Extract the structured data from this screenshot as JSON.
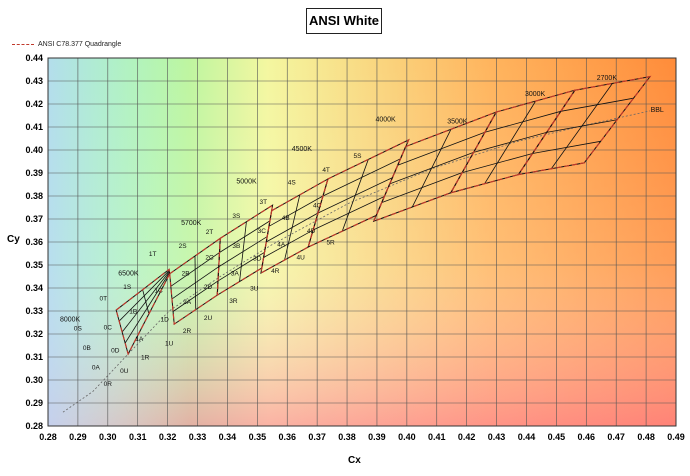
{
  "chart_data": {
    "type": "line",
    "title": "ANSI White",
    "xlabel": "Cx",
    "ylabel": "Cy",
    "xlim": [
      0.28,
      0.49
    ],
    "ylim": [
      0.28,
      0.44
    ],
    "grid": true,
    "legend": {
      "position": "top-left",
      "entries": [
        "ANSI C78.377 Quadrangle"
      ]
    },
    "x_ticks": [
      "0.28",
      "0.29",
      "0.30",
      "0.31",
      "0.32",
      "0.33",
      "0.34",
      "0.35",
      "0.36",
      "0.37",
      "0.38",
      "0.39",
      "0.40",
      "0.41",
      "0.42",
      "0.43",
      "0.44",
      "0.45",
      "0.46",
      "0.47",
      "0.48",
      "0.49"
    ],
    "y_ticks": [
      "0.28",
      "0.29",
      "0.30",
      "0.31",
      "0.32",
      "0.33",
      "0.34",
      "0.35",
      "0.36",
      "0.37",
      "0.38",
      "0.39",
      "0.40",
      "0.41",
      "0.42",
      "0.43",
      "0.44"
    ],
    "cct_labels": [
      {
        "text": "8000K",
        "x": 0.284,
        "y": 0.3255
      },
      {
        "text": "6500K",
        "x": 0.3035,
        "y": 0.3455
      },
      {
        "text": "5700K",
        "x": 0.3245,
        "y": 0.3675
      },
      {
        "text": "5000K",
        "x": 0.343,
        "y": 0.3855
      },
      {
        "text": "4500K",
        "x": 0.3615,
        "y": 0.3995
      },
      {
        "text": "4000K",
        "x": 0.3895,
        "y": 0.4125
      },
      {
        "text": "3500K",
        "x": 0.4135,
        "y": 0.4115
      },
      {
        "text": "3000K",
        "x": 0.4395,
        "y": 0.4235
      },
      {
        "text": "2700K",
        "x": 0.4635,
        "y": 0.4305
      },
      {
        "text": "BBL",
        "x": 0.4815,
        "y": 0.4165
      }
    ],
    "series": [
      {
        "name": "ANSI C78.377 Quadrangle",
        "quadrangles": [
          {
            "cct": "6500K",
            "corners": [
              [
                0.3028,
                0.3304
              ],
              [
                0.3205,
                0.3481
              ],
              [
                0.3207,
                0.3462
              ],
              [
                0.3068,
                0.3113
              ]
            ]
          },
          {
            "cct": "5700K",
            "corners": [
              [
                0.3207,
                0.3462
              ],
              [
                0.3376,
                0.3616
              ],
              [
                0.3366,
                0.3369
              ],
              [
                0.3222,
                0.3243
              ]
            ]
          },
          {
            "cct": "5000K",
            "corners": [
              [
                0.3376,
                0.3616
              ],
              [
                0.3551,
                0.376
              ],
              [
                0.3515,
                0.3487
              ],
              [
                0.3366,
                0.3369
              ]
            ]
          },
          {
            "cct": "4500K",
            "corners": [
              [
                0.3548,
                0.3736
              ],
              [
                0.3736,
                0.3874
              ],
              [
                0.367,
                0.3578
              ],
              [
                0.3512,
                0.3465
              ]
            ]
          },
          {
            "cct": "4000K",
            "corners": [
              [
                0.3736,
                0.3874
              ],
              [
                0.4006,
                0.4044
              ],
              [
                0.3898,
                0.3716
              ],
              [
                0.367,
                0.3578
              ]
            ]
          },
          {
            "cct": "3500K",
            "corners": [
              [
                0.3996,
                0.4015
              ],
              [
                0.4299,
                0.4165
              ],
              [
                0.4147,
                0.3814
              ],
              [
                0.3889,
                0.369
              ]
            ]
          },
          {
            "cct": "3000K",
            "corners": [
              [
                0.4299,
                0.4165
              ],
              [
                0.4562,
                0.426
              ],
              [
                0.4373,
                0.3893
              ],
              [
                0.4147,
                0.3814
              ]
            ]
          },
          {
            "cct": "2700K",
            "corners": [
              [
                0.4562,
                0.426
              ],
              [
                0.4813,
                0.4319
              ],
              [
                0.4593,
                0.3944
              ],
              [
                0.4373,
                0.3893
              ]
            ]
          }
        ]
      }
    ],
    "bin_labels": [
      {
        "text": "0S",
        "x": 0.29,
        "y": 0.3215
      },
      {
        "text": "0T",
        "x": 0.2985,
        "y": 0.3345
      },
      {
        "text": "0C",
        "x": 0.3,
        "y": 0.322
      },
      {
        "text": "0B",
        "x": 0.293,
        "y": 0.313
      },
      {
        "text": "0D",
        "x": 0.3025,
        "y": 0.312
      },
      {
        "text": "0A",
        "x": 0.296,
        "y": 0.3045
      },
      {
        "text": "0U",
        "x": 0.3055,
        "y": 0.303
      },
      {
        "text": "0R",
        "x": 0.3,
        "y": 0.2975
      },
      {
        "text": "1S",
        "x": 0.3065,
        "y": 0.3395
      },
      {
        "text": "1T",
        "x": 0.315,
        "y": 0.354
      },
      {
        "text": "1B",
        "x": 0.3085,
        "y": 0.329
      },
      {
        "text": "1C",
        "x": 0.317,
        "y": 0.338
      },
      {
        "text": "1A",
        "x": 0.3105,
        "y": 0.317
      },
      {
        "text": "1D",
        "x": 0.319,
        "y": 0.3255
      },
      {
        "text": "1U",
        "x": 0.3205,
        "y": 0.315
      },
      {
        "text": "1R",
        "x": 0.3125,
        "y": 0.309
      },
      {
        "text": "2S",
        "x": 0.325,
        "y": 0.3575
      },
      {
        "text": "2T",
        "x": 0.334,
        "y": 0.3635
      },
      {
        "text": "2B",
        "x": 0.326,
        "y": 0.3455
      },
      {
        "text": "2C",
        "x": 0.334,
        "y": 0.3525
      },
      {
        "text": "2A",
        "x": 0.3265,
        "y": 0.333
      },
      {
        "text": "2D",
        "x": 0.3335,
        "y": 0.3395
      },
      {
        "text": "2R",
        "x": 0.3265,
        "y": 0.3205
      },
      {
        "text": "2U",
        "x": 0.3335,
        "y": 0.326
      },
      {
        "text": "3S",
        "x": 0.343,
        "y": 0.3705
      },
      {
        "text": "3T",
        "x": 0.352,
        "y": 0.3765
      },
      {
        "text": "3B",
        "x": 0.343,
        "y": 0.3575
      },
      {
        "text": "3C",
        "x": 0.3515,
        "y": 0.364
      },
      {
        "text": "3A",
        "x": 0.3425,
        "y": 0.3455
      },
      {
        "text": "3D",
        "x": 0.35,
        "y": 0.352
      },
      {
        "text": "3R",
        "x": 0.342,
        "y": 0.3335
      },
      {
        "text": "3U",
        "x": 0.349,
        "y": 0.339
      },
      {
        "text": "4S",
        "x": 0.3615,
        "y": 0.385
      },
      {
        "text": "4T",
        "x": 0.373,
        "y": 0.3905
      },
      {
        "text": "4B",
        "x": 0.3595,
        "y": 0.3695
      },
      {
        "text": "4C",
        "x": 0.37,
        "y": 0.375
      },
      {
        "text": "4A",
        "x": 0.358,
        "y": 0.358
      },
      {
        "text": "4D",
        "x": 0.368,
        "y": 0.364
      },
      {
        "text": "4R",
        "x": 0.356,
        "y": 0.3465
      },
      {
        "text": "4U",
        "x": 0.3645,
        "y": 0.3525
      },
      {
        "text": "5S",
        "x": 0.3835,
        "y": 0.3965
      },
      {
        "text": "5R",
        "x": 0.3745,
        "y": 0.359
      }
    ]
  }
}
